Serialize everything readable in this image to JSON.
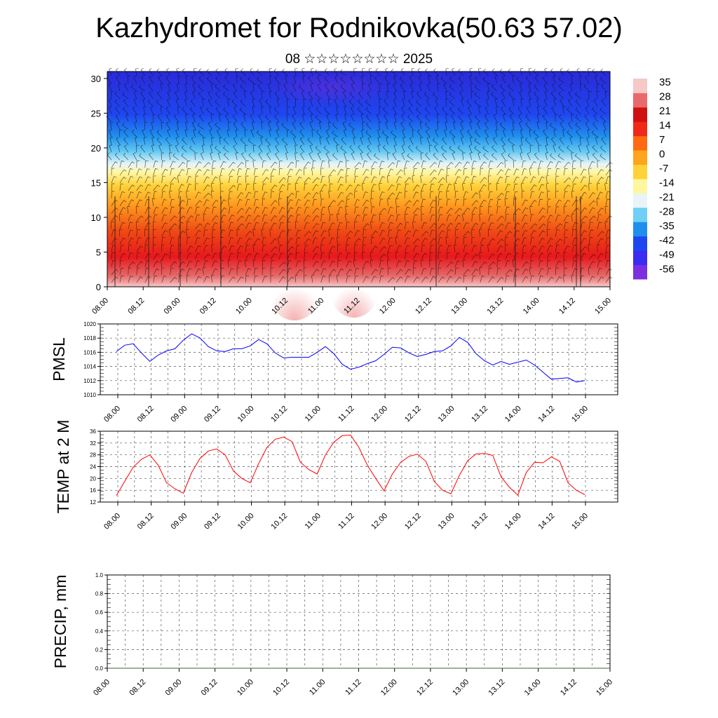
{
  "title": "Kazhydromet for Rodnikovka(50.63 57.02)",
  "subtitle": "08 ☆☆☆☆☆☆☆☆ 2025",
  "colors": {
    "pmsl_line": "#0000ff",
    "temp_line": "#ff0000",
    "precip_line": "#2e6b2e",
    "colorbar": [
      "#7b2fe0",
      "#3a2cf0",
      "#1e46f0",
      "#1f8fee",
      "#6fcff4",
      "#e8f4f8",
      "#fff6a0",
      "#ffd23a",
      "#ffa41e",
      "#ff6a12",
      "#f02818",
      "#d01010",
      "#e86a6a",
      "#f7c8c8"
    ]
  },
  "chart_data": [
    {
      "type": "heatmap",
      "title": "",
      "xlabel": "",
      "ylabel": "",
      "x_tick_labels": [
        "08.00",
        "08.12",
        "09.00",
        "09.12",
        "10.00",
        "10.12",
        "11.00",
        "11.12",
        "12.00",
        "12.12",
        "13.00",
        "13.12",
        "14.00",
        "14.12",
        "15.00"
      ],
      "yticks": [
        0,
        5,
        10,
        15,
        20,
        25,
        30
      ],
      "ylim": [
        0,
        31
      ],
      "description_scale": "temperature",
      "colorbar_labels": [
        "35",
        "28",
        "21",
        "14",
        "7",
        "0",
        "-7",
        "-14",
        "-21",
        "-28",
        "-35",
        "-42",
        "-49",
        "-56"
      ],
      "vrange": [
        -63,
        38
      ],
      "profile_levels": [
        0,
        3,
        6,
        9,
        12,
        15,
        17,
        20,
        23,
        26,
        31
      ],
      "profile_values": [
        30,
        24,
        16,
        8,
        0,
        -8,
        -18,
        -34,
        -48,
        -52,
        -56
      ],
      "overlay": "wind barbs and contour lines"
    },
    {
      "type": "line",
      "ylabel": "PMSL",
      "ylim": [
        1010,
        1020
      ],
      "yticks": [
        "1010",
        "1012",
        "1014",
        "1016",
        "1018",
        "1020"
      ],
      "x_tick_labels": [
        "08.00",
        "08.12",
        "09.00",
        "09.12",
        "10.00",
        "10.12",
        "11.00",
        "11.12",
        "12.00",
        "12.12",
        "13.00",
        "13.12",
        "14.00",
        "14.12",
        "15.00"
      ],
      "grid": true,
      "series": [
        {
          "values": [
            1016.1,
            1017.0,
            1017.2,
            1015.9,
            1014.7,
            1015.6,
            1016.2,
            1016.5,
            1017.7,
            1018.6,
            1018.0,
            1016.8,
            1016.2,
            1016.1,
            1016.5,
            1016.5,
            1016.9,
            1017.8,
            1017.2,
            1015.9,
            1015.2,
            1015.3,
            1015.3,
            1015.3,
            1016.0,
            1016.8,
            1015.8,
            1014.3,
            1013.6,
            1013.9,
            1014.4,
            1014.8,
            1015.7,
            1016.7,
            1016.6,
            1015.9,
            1015.4,
            1015.7,
            1016.1,
            1016.2,
            1016.9,
            1018.1,
            1017.4,
            1015.8,
            1014.8,
            1014.2,
            1014.7,
            1014.3,
            1014.6,
            1014.9,
            1014.2,
            1013.2,
            1012.2,
            1012.3,
            1012.4,
            1011.8,
            1012.0
          ]
        }
      ]
    },
    {
      "type": "line",
      "ylabel": "TEMP at 2 M",
      "ylim": [
        12,
        36
      ],
      "yticks": [
        "12",
        "16",
        "20",
        "24",
        "28",
        "32",
        "36"
      ],
      "x_tick_labels": [
        "08.00",
        "08.12",
        "09.00",
        "09.12",
        "10.00",
        "10.12",
        "11.00",
        "11.12",
        "12.00",
        "12.12",
        "13.00",
        "13.12",
        "14.00",
        "14.12",
        "15.00"
      ],
      "grid": true,
      "series": [
        {
          "values": [
            14.2,
            19.0,
            23.8,
            26.5,
            28.0,
            24.5,
            18.5,
            16.5,
            15.0,
            22.0,
            26.8,
            29.3,
            30.0,
            28.0,
            22.5,
            20.0,
            18.5,
            25.0,
            30.5,
            33.3,
            34.0,
            32.5,
            25.5,
            23.0,
            21.5,
            28.0,
            32.3,
            34.5,
            34.7,
            30.5,
            24.5,
            20.0,
            15.8,
            21.5,
            25.5,
            27.5,
            28.2,
            25.8,
            19.0,
            16.0,
            14.8,
            21.0,
            26.0,
            28.3,
            28.5,
            27.8,
            20.5,
            17.0,
            14.3,
            22.0,
            25.5,
            25.3,
            27.3,
            25.8,
            18.5,
            16.0,
            14.5
          ]
        }
      ]
    },
    {
      "type": "line",
      "ylabel": "PRECIP, mm",
      "ylim": [
        0,
        1.0
      ],
      "yticks": [
        "0.0",
        "0.2",
        "0.4",
        "0.6",
        "0.8",
        "1.0"
      ],
      "x_tick_labels": [
        "08.00",
        "08.12",
        "09.00",
        "09.12",
        "10.00",
        "10.12",
        "11.00",
        "11.12",
        "12.00",
        "12.12",
        "13.00",
        "13.12",
        "14.00",
        "14.12",
        "15.00"
      ],
      "grid": true,
      "series": [
        {
          "values": [
            0,
            0,
            0,
            0,
            0,
            0,
            0,
            0,
            0,
            0,
            0,
            0,
            0,
            0,
            0
          ]
        }
      ]
    }
  ]
}
